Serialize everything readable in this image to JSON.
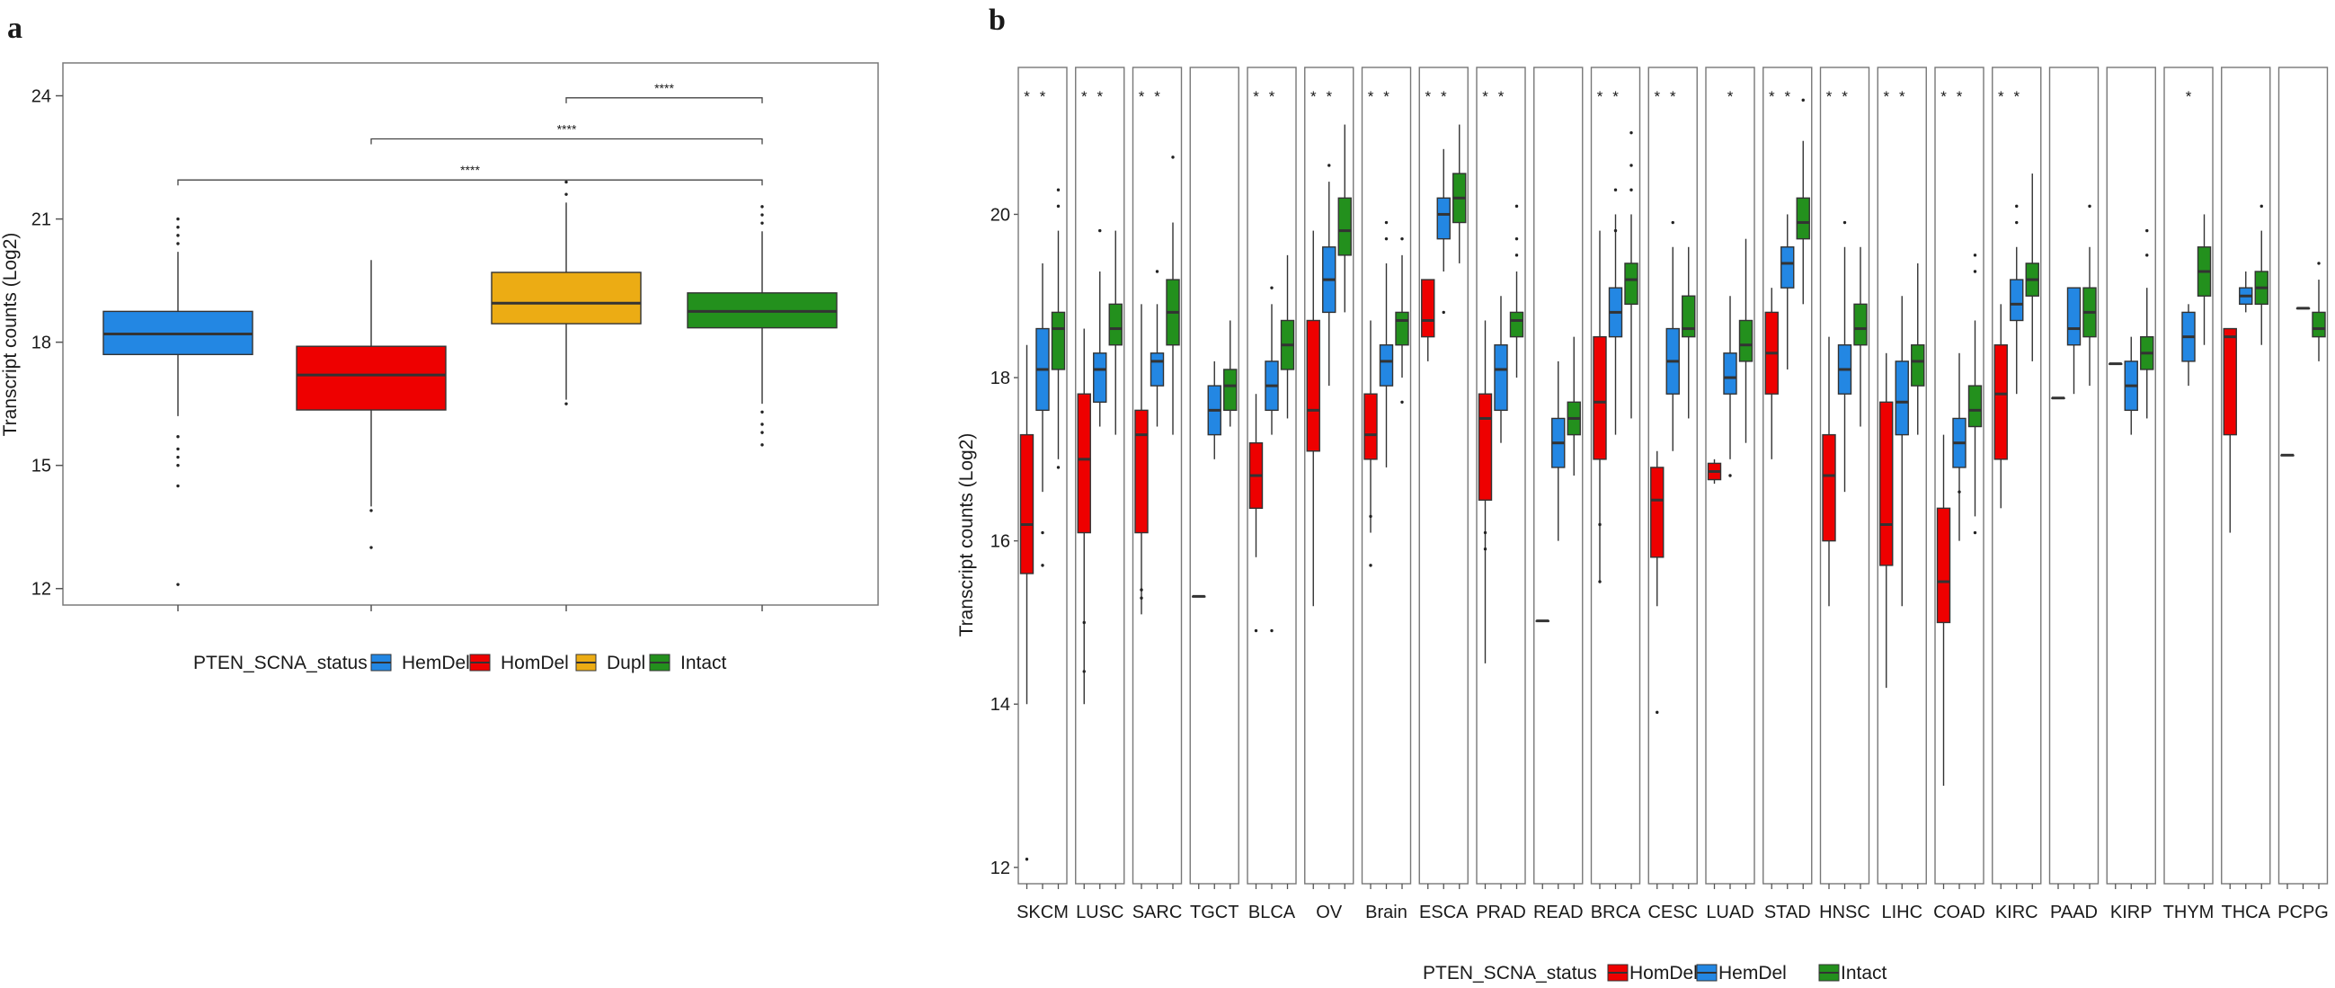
{
  "colors": {
    "HemDel": "#2387e3",
    "HomDel": "#ee0000",
    "Dupl": "#ecac14",
    "Intact": "#23901d"
  },
  "chart_data": [
    {
      "panel": "a",
      "type": "box",
      "xlabel": "",
      "ylabel": "Transcript counts (Log2)",
      "ylim": [
        11.6,
        24.8
      ],
      "yticks": [
        12,
        15,
        18,
        21,
        24
      ],
      "legend_title": "PTEN_SCNA_status",
      "legend": [
        "HemDel",
        "HomDel",
        "Dupl",
        "Intact"
      ],
      "groups": [
        {
          "name": "HemDel",
          "q1": 17.7,
          "median": 18.2,
          "q3": 18.75,
          "wlo": 16.2,
          "whi": 20.2,
          "out": [
            15.7,
            15.4,
            15.2,
            15.0,
            14.5,
            12.1,
            20.4,
            20.6,
            20.8,
            21.0
          ]
        },
        {
          "name": "HomDel",
          "q1": 16.35,
          "median": 17.2,
          "q3": 17.9,
          "wlo": 14.0,
          "whi": 20.0,
          "out": [
            13.9,
            13.0
          ]
        },
        {
          "name": "Dupl",
          "q1": 18.45,
          "median": 18.95,
          "q3": 19.7,
          "wlo": 16.6,
          "whi": 21.4,
          "out": [
            16.5,
            21.6,
            21.9
          ]
        },
        {
          "name": "Intact",
          "q1": 18.35,
          "median": 18.75,
          "q3": 19.2,
          "wlo": 16.5,
          "whi": 20.7,
          "out": [
            16.3,
            16.0,
            15.8,
            15.5,
            20.9,
            21.1,
            21.3
          ]
        }
      ],
      "brackets": [
        {
          "from": "Dupl",
          "to": "Intact",
          "y": 23.95,
          "label": "****"
        },
        {
          "from": "HomDel",
          "to": "Intact",
          "y": 22.95,
          "label": "****"
        },
        {
          "from": "HemDel",
          "to": "Intact",
          "y": 21.95,
          "label": "****"
        }
      ]
    },
    {
      "panel": "b",
      "type": "box",
      "xlabel": "",
      "ylabel": "Transcript counts (Log2)",
      "ylim": [
        11.8,
        21.8
      ],
      "yticks": [
        12,
        14,
        16,
        18,
        20
      ],
      "legend_title": "PTEN_SCNA_status",
      "legend": [
        "HomDel",
        "HemDel",
        "Intact"
      ],
      "categories": [
        "SKCM",
        "LUSC",
        "SARC",
        "TGCT",
        "BLCA",
        "OV",
        "Brain",
        "ESCA",
        "PRAD",
        "READ",
        "BRCA",
        "CESC",
        "LUAD",
        "STAD",
        "HNSC",
        "LIHC",
        "COAD",
        "KIRC",
        "PAAD",
        "KIRP",
        "THYM",
        "THCA",
        "PCPG"
      ],
      "stars": [
        2,
        2,
        2,
        0,
        2,
        2,
        2,
        2,
        2,
        0,
        2,
        2,
        1,
        2,
        2,
        2,
        2,
        2,
        0,
        0,
        1,
        0,
        0
      ],
      "star_label": "*",
      "facets": [
        {
          "HomDel": [
            15.6,
            16.2,
            17.3,
            14.0,
            18.4,
            [
              12.1
            ]
          ],
          "HemDel": [
            17.6,
            18.1,
            18.6,
            16.6,
            19.4,
            [
              16.1,
              15.7
            ]
          ],
          "Intact": [
            18.1,
            18.6,
            18.8,
            17.0,
            19.8,
            [
              16.9,
              20.3,
              20.1
            ]
          ]
        },
        {
          "HomDel": [
            16.1,
            17.0,
            17.8,
            14.0,
            18.6,
            [
              14.4,
              15.0
            ]
          ],
          "HemDel": [
            17.7,
            18.1,
            18.3,
            17.4,
            19.3,
            [
              19.8
            ]
          ],
          "Intact": [
            18.4,
            18.6,
            18.9,
            17.3,
            19.8,
            []
          ]
        },
        {
          "HomDel": [
            16.1,
            17.3,
            17.6,
            15.1,
            18.9,
            [
              15.3,
              15.4
            ]
          ],
          "HemDel": [
            17.9,
            18.2,
            18.3,
            17.4,
            18.9,
            [
              19.3
            ]
          ],
          "Intact": [
            18.4,
            18.8,
            19.2,
            17.3,
            19.9,
            [
              20.7
            ]
          ]
        },
        {
          "HomDel": [
            15.32,
            15.32,
            15.32,
            15.32,
            15.32,
            []
          ],
          "HemDel": [
            17.3,
            17.6,
            17.9,
            17.0,
            18.2,
            []
          ],
          "Intact": [
            17.6,
            17.9,
            18.1,
            17.4,
            18.7,
            []
          ]
        },
        {
          "HomDel": [
            16.4,
            16.8,
            17.2,
            15.8,
            17.8,
            [
              14.9
            ]
          ],
          "HemDel": [
            17.6,
            17.9,
            18.2,
            17.3,
            18.9,
            [
              14.9,
              19.1
            ]
          ],
          "Intact": [
            18.1,
            18.4,
            18.7,
            17.5,
            19.5,
            []
          ]
        },
        {
          "HomDel": [
            17.1,
            17.6,
            18.7,
            15.2,
            19.8,
            []
          ],
          "HemDel": [
            18.8,
            19.2,
            19.6,
            17.9,
            20.4,
            [
              20.6
            ]
          ],
          "Intact": [
            19.5,
            19.8,
            20.2,
            18.8,
            21.1,
            []
          ]
        },
        {
          "HomDel": [
            17.0,
            17.3,
            17.8,
            16.1,
            18.7,
            [
              15.7,
              16.3
            ]
          ],
          "HemDel": [
            17.9,
            18.2,
            18.4,
            16.9,
            19.4,
            [
              19.7,
              19.9
            ]
          ],
          "Intact": [
            18.4,
            18.7,
            18.8,
            18.0,
            19.5,
            [
              17.7,
              19.7
            ]
          ]
        },
        {
          "HomDel": [
            18.5,
            18.7,
            19.2,
            18.2,
            19.2,
            []
          ],
          "HemDel": [
            19.7,
            20.0,
            20.2,
            19.3,
            20.8,
            [
              18.8
            ]
          ],
          "Intact": [
            19.9,
            20.2,
            20.5,
            19.4,
            21.1,
            []
          ]
        },
        {
          "HomDel": [
            16.5,
            17.5,
            17.8,
            14.5,
            18.7,
            [
              15.9,
              16.1
            ]
          ],
          "HemDel": [
            17.6,
            18.1,
            18.4,
            17.2,
            19.0,
            []
          ],
          "Intact": [
            18.5,
            18.7,
            18.8,
            18.0,
            19.3,
            [
              19.5,
              19.7,
              20.1
            ]
          ]
        },
        {
          "HomDel": [
            15.02,
            15.02,
            15.02,
            15.02,
            15.02,
            []
          ],
          "HemDel": [
            16.9,
            17.2,
            17.5,
            16.0,
            18.2,
            []
          ],
          "Intact": [
            17.3,
            17.5,
            17.7,
            16.8,
            18.5,
            []
          ]
        },
        {
          "HomDel": [
            17.0,
            17.7,
            18.5,
            15.5,
            19.8,
            [
              15.5,
              16.2
            ]
          ],
          "HemDel": [
            18.5,
            18.8,
            19.1,
            17.3,
            20.0,
            [
              19.8,
              20.3
            ]
          ],
          "Intact": [
            18.9,
            19.2,
            19.4,
            17.5,
            20.0,
            [
              20.3,
              20.6,
              21.0
            ]
          ]
        },
        {
          "HomDel": [
            15.8,
            16.5,
            16.9,
            15.2,
            17.1,
            [
              13.9
            ]
          ],
          "HemDel": [
            17.8,
            18.2,
            18.6,
            17.1,
            19.6,
            [
              19.9
            ]
          ],
          "Intact": [
            18.5,
            18.6,
            19.0,
            17.5,
            19.6,
            []
          ]
        },
        {
          "HomDel": [
            16.75,
            16.85,
            16.95,
            16.7,
            17.0,
            []
          ],
          "HemDel": [
            17.8,
            18.0,
            18.3,
            17.0,
            19.0,
            [
              16.8
            ]
          ],
          "Intact": [
            18.2,
            18.4,
            18.7,
            17.2,
            19.7,
            []
          ]
        },
        {
          "HomDel": [
            17.8,
            18.3,
            18.8,
            17.0,
            19.1,
            []
          ],
          "HemDel": [
            19.1,
            19.4,
            19.6,
            18.1,
            20.0,
            []
          ],
          "Intact": [
            19.7,
            19.9,
            20.2,
            18.9,
            20.9,
            [
              21.4
            ]
          ]
        },
        {
          "HomDel": [
            16.0,
            16.8,
            17.3,
            15.2,
            18.5,
            []
          ],
          "HemDel": [
            17.8,
            18.1,
            18.4,
            16.6,
            19.6,
            [
              19.9
            ]
          ],
          "Intact": [
            18.4,
            18.6,
            18.9,
            17.4,
            19.6,
            []
          ]
        },
        {
          "HomDel": [
            15.7,
            16.2,
            17.7,
            14.2,
            18.3,
            []
          ],
          "HemDel": [
            17.3,
            17.7,
            18.2,
            15.2,
            19.0,
            []
          ],
          "Intact": [
            17.9,
            18.2,
            18.4,
            17.3,
            19.4,
            []
          ]
        },
        {
          "HomDel": [
            15.0,
            15.5,
            16.4,
            13.0,
            17.3,
            []
          ],
          "HemDel": [
            16.9,
            17.2,
            17.5,
            16.0,
            18.3,
            [
              16.6
            ]
          ],
          "Intact": [
            17.4,
            17.6,
            17.9,
            16.3,
            18.7,
            [
              16.1,
              19.3,
              19.5
            ]
          ]
        },
        {
          "HomDel": [
            17.0,
            17.8,
            18.4,
            16.4,
            18.9,
            []
          ],
          "HemDel": [
            18.7,
            18.9,
            19.2,
            17.8,
            19.6,
            [
              19.9,
              20.1
            ]
          ],
          "Intact": [
            19.0,
            19.2,
            19.4,
            18.2,
            20.5,
            []
          ]
        },
        {
          "HomDel": [
            17.75,
            17.75,
            17.75,
            17.75,
            17.75,
            []
          ],
          "HemDel": [
            18.4,
            18.6,
            19.1,
            17.8,
            19.1,
            []
          ],
          "Intact": [
            18.5,
            18.8,
            19.1,
            17.9,
            19.6,
            [
              20.1
            ]
          ]
        },
        {
          "HomDel": [
            18.17,
            18.17,
            18.17,
            18.17,
            18.17,
            []
          ],
          "HemDel": [
            17.6,
            17.9,
            18.2,
            17.3,
            18.5,
            []
          ],
          "Intact": [
            18.1,
            18.3,
            18.5,
            17.5,
            19.1,
            [
              19.5,
              19.8
            ]
          ]
        },
        {
          "HomDel": [],
          "HemDel": [
            18.2,
            18.5,
            18.8,
            17.9,
            18.9,
            []
          ],
          "Intact": [
            19.0,
            19.3,
            19.6,
            18.4,
            20.0,
            []
          ]
        },
        {
          "HomDel": [
            17.3,
            18.5,
            18.6,
            16.1,
            18.6,
            []
          ],
          "HemDel": [
            18.9,
            19.0,
            19.1,
            18.8,
            19.3,
            []
          ],
          "Intact": [
            18.9,
            19.1,
            19.3,
            18.4,
            19.8,
            [
              20.1
            ]
          ]
        },
        {
          "HomDel": [
            17.05,
            17.05,
            17.05,
            17.05,
            17.05,
            []
          ],
          "HemDel": [
            18.85,
            18.85,
            18.85,
            18.85,
            18.85,
            []
          ],
          "Intact": [
            18.5,
            18.6,
            18.8,
            18.2,
            19.2,
            [
              19.4
            ]
          ]
        }
      ]
    }
  ]
}
